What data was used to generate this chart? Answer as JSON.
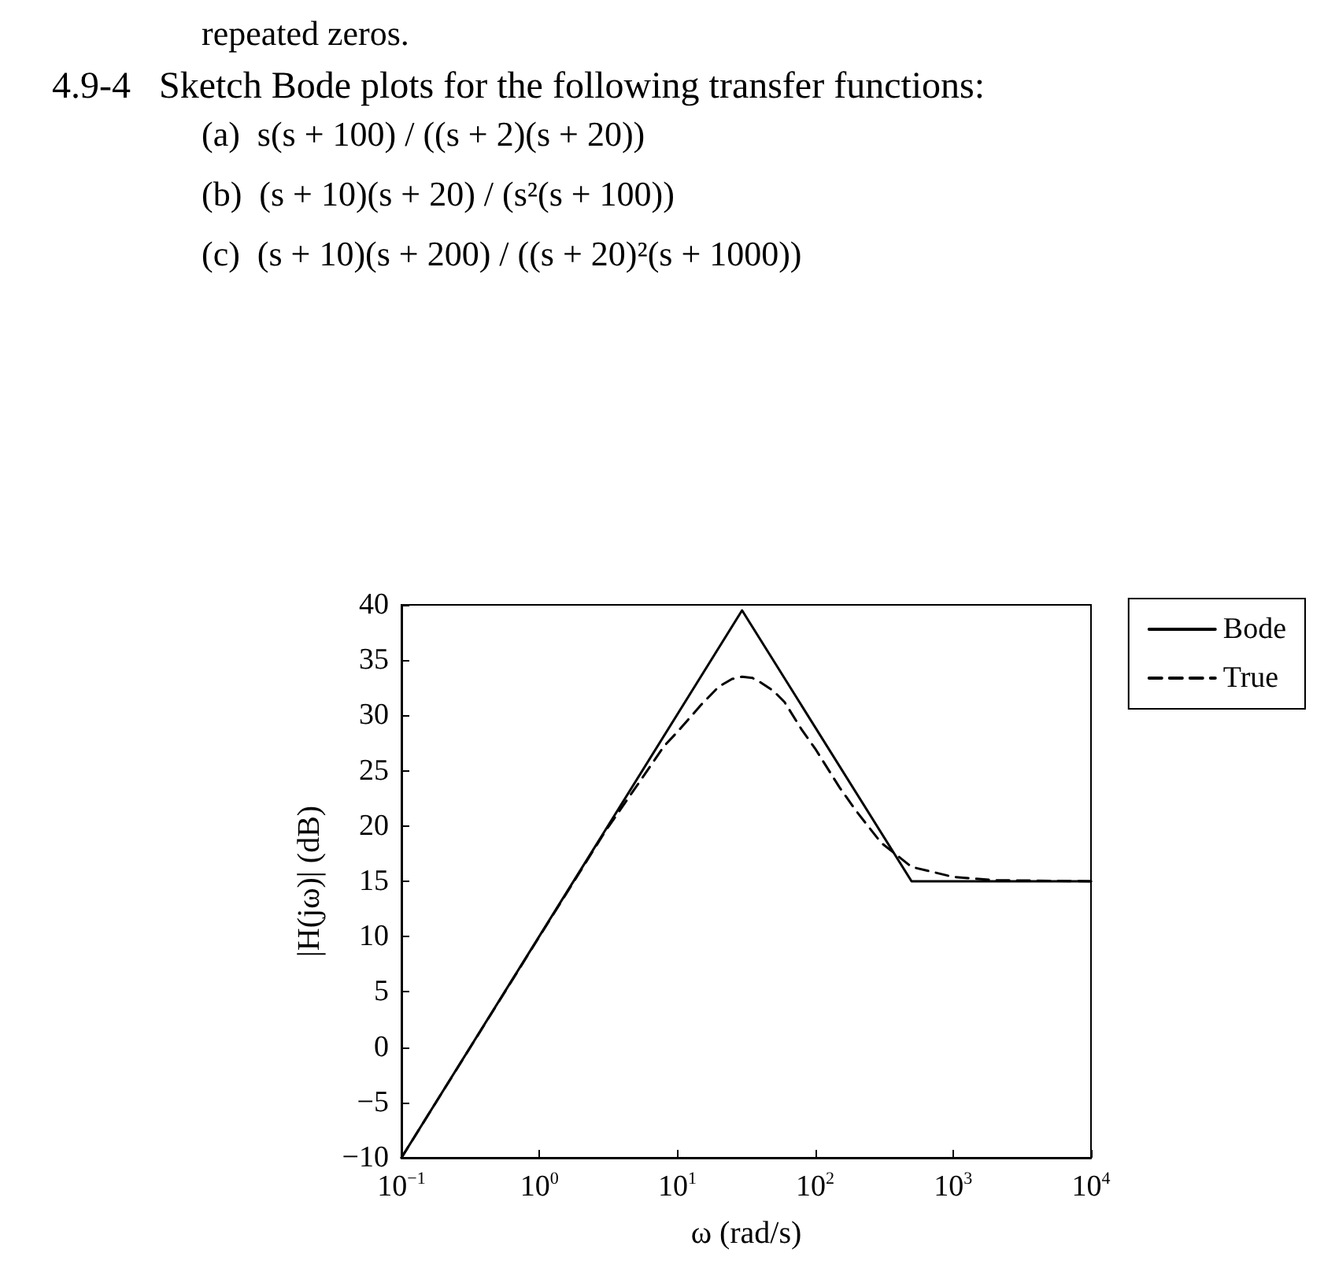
{
  "chart_data": {
    "type": "line",
    "title": "4.9-4   Sketch Bode plots for the following transfer functions:",
    "annotations": [
      "repeated zeros.",
      "(a)  s(s + 100) / ((s + 2)(s + 20))",
      "(b)  (s + 10)(s + 20) / (s²(s + 100))",
      "(c)  (s + 10)(s + 200) / ((s + 20)²(s + 1000))"
    ],
    "xlabel": "ω (rad/s)",
    "ylabel": "|H(jω)| (dB)",
    "log": "x",
    "xlim": [
      0.1,
      10000
    ],
    "xticks": [
      {
        "value": 0.1,
        "label": "10$^{−1}$"
      },
      {
        "value": 1,
        "label": "10$^{0}$"
      },
      {
        "value": 10,
        "label": "10$^{1}$"
      },
      {
        "value": 100,
        "label": "10$^{2}$"
      },
      {
        "value": 1000,
        "label": "10$^{3}$"
      },
      {
        "value": 10000,
        "label": "10$^{4}$"
      }
    ],
    "ylim": [
      -10,
      40
    ],
    "yticks": [
      {
        "value": -10,
        "label": "−10"
      },
      {
        "value": -5,
        "label": "−5"
      },
      0,
      5,
      10,
      15,
      20,
      25,
      30,
      35,
      40
    ],
    "legend": "top right",
    "grid": false,
    "series": [
      {
        "name": "Bode",
        "color": "#000000",
        "line_style": "solid",
        "x": [
          0.1,
          29.5,
          500,
          10000
        ],
        "values": [
          -10,
          39.5,
          15,
          15
        ]
      },
      {
        "name": "True",
        "color": "#000000",
        "line_style": "dashed",
        "x": [
          0.1,
          1,
          3,
          5,
          8,
          10,
          15,
          20,
          25,
          29.5,
          35,
          40,
          50,
          60,
          80,
          100,
          150,
          200,
          300,
          500,
          1000,
          2000,
          10000
        ],
        "values": [
          -10,
          10,
          19.5,
          23.5,
          27.2,
          28.5,
          31,
          32.6,
          33.3,
          33.5,
          33.4,
          33,
          32.2,
          31.2,
          28.7,
          27,
          23.5,
          21.3,
          18.5,
          16.3,
          15.4,
          15.1,
          15
        ]
      }
    ]
  }
}
